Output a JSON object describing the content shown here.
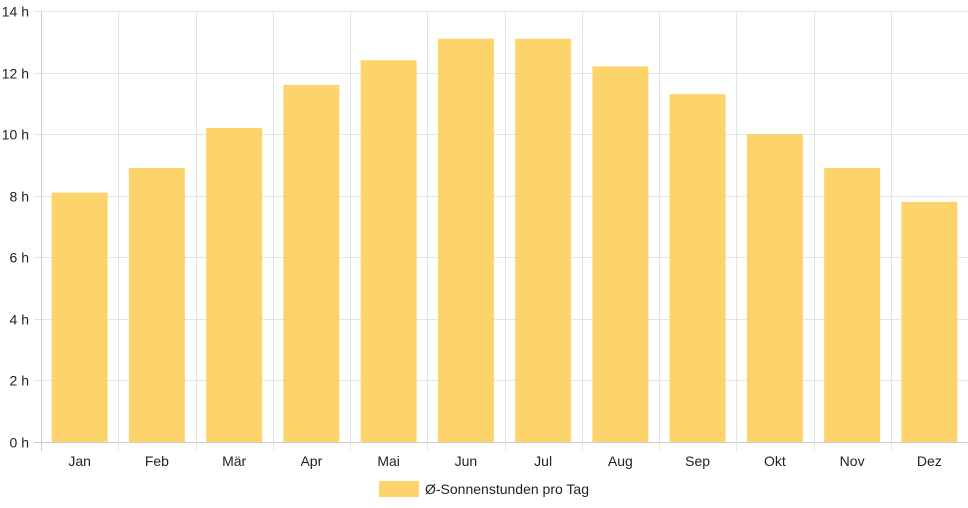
{
  "chart_data": {
    "type": "bar",
    "categories": [
      "Jan",
      "Feb",
      "Mär",
      "Apr",
      "Mai",
      "Jun",
      "Jul",
      "Aug",
      "Sep",
      "Okt",
      "Nov",
      "Dez"
    ],
    "series": [
      {
        "name": "Ø-Sonnenstunden pro Tag",
        "values": [
          8.1,
          8.9,
          10.2,
          11.6,
          12.4,
          13.1,
          13.1,
          12.2,
          11.3,
          10.0,
          8.9,
          7.8
        ]
      }
    ],
    "ylim": [
      0,
      14
    ],
    "y_ticks": [
      0,
      2,
      4,
      6,
      8,
      10,
      12,
      14
    ],
    "y_tick_labels": [
      "0 h",
      "2 h",
      "4 h",
      "6 h",
      "8 h",
      "10 h",
      "12 h",
      "14 h"
    ],
    "grid": true,
    "legend_position": "bottom",
    "bar_color": "#fdd36b",
    "grid_color": "#e4e4e4",
    "axis_color": "#cccccc"
  }
}
